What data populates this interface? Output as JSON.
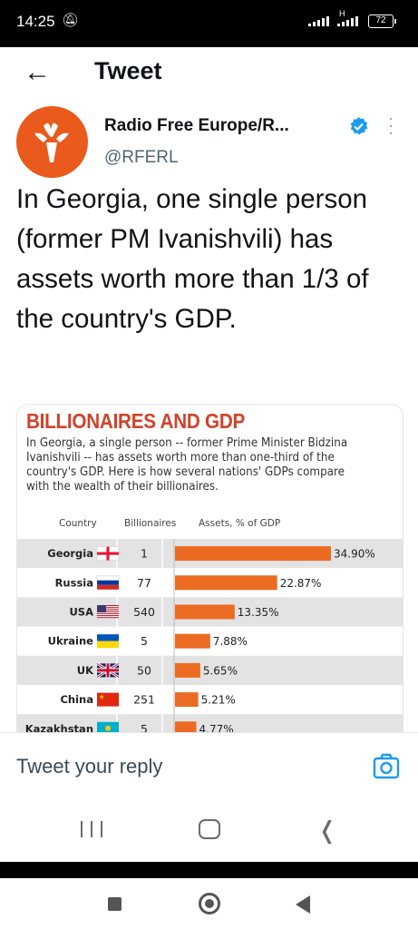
{
  "status_bar": {
    "time": "14:25",
    "network_label": "H",
    "battery": "72"
  },
  "header": {
    "title": "Tweet"
  },
  "tweet": {
    "author_name": "Radio Free Europe/R...",
    "handle": "@RFERL",
    "text": "In Georgia, one single person (former PM Ivanishvili) has assets worth more than 1/3 of the country's GDP."
  },
  "image": {
    "title": "BILLIONAIRES AND GDP",
    "subtitle": "In Georgia, a single person -- former Prime Minister Bidzina Ivanishvili -- has assets worth more than one-third of the country's GDP.  Here is how several nations' GDPs compare with the wealth of their billionaires."
  },
  "chart_data": {
    "type": "bar",
    "columns": [
      "Country",
      "Billionaires",
      "Assets, % of GDP"
    ],
    "categories": [
      "Georgia",
      "Russia",
      "USA",
      "Ukraine",
      "UK",
      "China",
      "Kazakhstan"
    ],
    "billionaires": [
      "1",
      "77",
      "540",
      "5",
      "50",
      "251",
      "5"
    ],
    "values": [
      34.9,
      22.87,
      13.35,
      7.88,
      5.65,
      5.21,
      4.77
    ],
    "value_labels": [
      "34.90%",
      "22.87%",
      "13.35%",
      "7.88%",
      "5.65%",
      "5.21%",
      "4.77%"
    ],
    "bar_color": "#ec6b23",
    "row_colors": [
      "#e3e3e3",
      "#ffffff"
    ]
  },
  "reply": {
    "placeholder": "Tweet your reply"
  },
  "colors": {
    "accent": "#1d9bf0",
    "brand": "#ea5a1c"
  }
}
